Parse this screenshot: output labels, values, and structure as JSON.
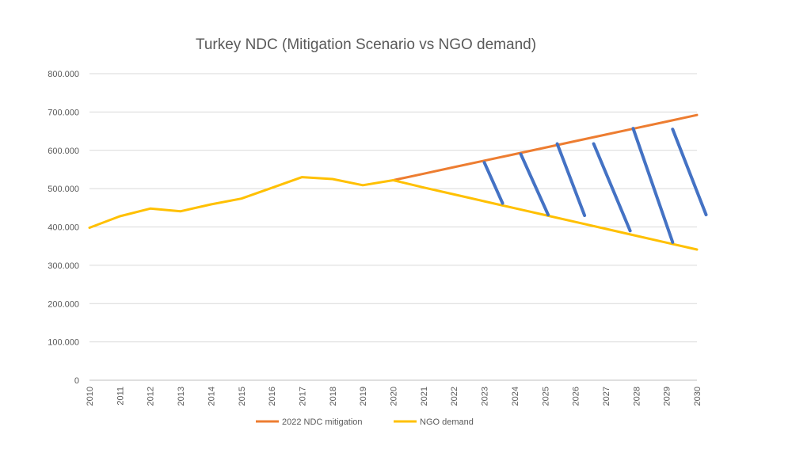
{
  "chart_data": {
    "type": "line",
    "title": "Turkey NDC (Mitigation Scenario vs NGO demand)",
    "xlabel": "",
    "ylabel": "",
    "categories": [
      "2010",
      "2011",
      "2012",
      "2013",
      "2014",
      "2015",
      "2016",
      "2017",
      "2018",
      "2019",
      "2020",
      "2021",
      "2022",
      "2023",
      "2024",
      "2025",
      "2026",
      "2027",
      "2028",
      "2029",
      "2030"
    ],
    "y_ticks": [
      "0",
      "100.000",
      "200.000",
      "300.000",
      "400.000",
      "500.000",
      "600.000",
      "700.000",
      "800.000"
    ],
    "ylim": [
      0,
      800000
    ],
    "grid": true,
    "legend_position": "bottom",
    "series": [
      {
        "name": "2022 NDC mitigation",
        "color": "#ED7D31",
        "values": [
          null,
          null,
          null,
          null,
          null,
          null,
          null,
          null,
          null,
          null,
          522000,
          539000,
          556000,
          573000,
          590000,
          607000,
          624000,
          641000,
          658000,
          675000,
          692000
        ]
      },
      {
        "name": "NGO demand",
        "color": "#FFC000",
        "values": [
          398000,
          428000,
          448000,
          441000,
          459000,
          474000,
          502000,
          530000,
          525000,
          509000,
          522000,
          503000,
          485000,
          467000,
          449000,
          431000,
          413000,
          395000,
          377000,
          359000,
          341000
        ]
      }
    ],
    "annotation": {
      "type": "hatch-lines",
      "color": "#4472C4",
      "description": "gap between NDC mitigation and NGO demand",
      "lines": [
        {
          "x1": 2023.0,
          "y1": 568000,
          "x2": 2023.6,
          "y2": 462000
        },
        {
          "x1": 2024.2,
          "y1": 590000,
          "x2": 2025.1,
          "y2": 432000
        },
        {
          "x1": 2025.4,
          "y1": 617000,
          "x2": 2026.3,
          "y2": 430000
        },
        {
          "x1": 2026.6,
          "y1": 617000,
          "x2": 2027.8,
          "y2": 390000
        },
        {
          "x1": 2027.9,
          "y1": 657000,
          "x2": 2029.2,
          "y2": 360000
        },
        {
          "x1": 2029.2,
          "y1": 655000,
          "x2": 2030.3,
          "y2": 432000
        }
      ]
    }
  }
}
